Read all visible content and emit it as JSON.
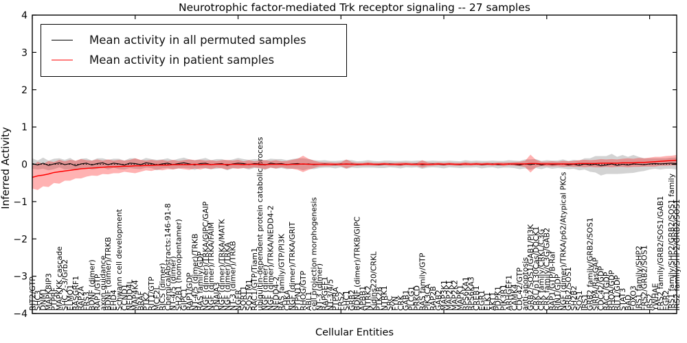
{
  "title": "Neurotrophic factor-mediated Trk receptor signaling -- 27 samples",
  "legend": {
    "entries": [
      {
        "label": "Mean activity in all permuted samples",
        "color": "#000000"
      },
      {
        "label": "Mean activity in patient samples",
        "color": "#ff0000"
      }
    ]
  },
  "axes": {
    "ylabel": "Inferred Activity",
    "xlabel": "Cellular Entities"
  },
  "chart_data": {
    "type": "line",
    "title": "Neurotrophic factor-mediated Trk receptor signaling -- 27 samples",
    "xlabel": "Cellular Entities",
    "ylabel": "Inferred Activity",
    "ylim": [
      -4,
      4
    ],
    "yticks": [
      -4,
      -3,
      -2,
      -1,
      0,
      1,
      2,
      3,
      4
    ],
    "grid": false,
    "zero_line_dotted": true,
    "legend_position": "upper-left",
    "categories": [
      "RIT2/GTP",
      "SHC3",
      "DNM1",
      "MAPK8IP3",
      "PTPRF",
      "MAPKKK cascade",
      "SHC 2-3/Grb2",
      "ELMO1",
      "RASGRF1",
      "RAP2A",
      "FRS3",
      "BDNF (dimer)",
      "RAP1/GTP",
      "axon guidance",
      "BDNF (dimer)/TRKB",
      "EHD4",
      "Schwann cell development",
      "CCND1",
      "NEDD4L",
      "MAP4K4",
      "BRAF",
      "PTK2",
      "RIT1/GTP",
      "MCF2L",
      "RICS (dimer)",
      "ChemicalAbstracts:146-91-8",
      "NT-4/5 (dimer)",
      "SH2B1 (homopentamer)",
      "GIPC1",
      "RAP1/GDP",
      "NT-4/5 (dimer)/TRKB",
      "RAS family/GDP",
      "NGF (dimer)/TRKA/GIPC/GAIP",
      "NGF (dimer)/TRKA/FAIM",
      "DNAJA3",
      "NGF (dimer)/TRKA/MATK",
      "NGF (dimer)/TRKA",
      "NT-3 (dimer)/TRKB",
      "NGFR",
      "SORT1",
      "SQSTM1",
      "RAC1/GTP/Tiam1",
      "ubiquitin-dependent protein catabolic process",
      "NGF (dimer)",
      "NGF (dimer)/TRKA/NEDD4-2",
      "NEDD4-2",
      "RAS family/GTP/PI3K",
      "CHKA",
      "NGF (dimer)/TRKA/GRIT",
      "PTPN11",
      "RHOG/GTP",
      "ABL1",
      "cell projection morphogenesis",
      "NT-3 (dimer)",
      "RAPGEF1",
      "NT-3/4/5",
      "PTPRA",
      "FRS2",
      "SHC1",
      "GRB2",
      "BDNF (dimer)/TRKB/GIPC",
      "APBB1",
      "NTRK2",
      "Kidins220/CRKL",
      "PTK2B",
      "NTRK1",
      "SRC",
      "FYN",
      "CRK",
      "GAB1",
      "PLCG1",
      "PRKCD",
      "RAS family/GTP",
      "PIK3CA",
      "RAP2B",
      "GAB2",
      "MAP3K1",
      "MAP2K1",
      "MAP2K2",
      "MAPK1",
      "RPS6KA1",
      "RPS6KA3",
      "CREB1",
      "EGR1",
      "ELK1",
      "AKT1",
      "PDPK1",
      "PIK3R1",
      "ARHGEF1",
      "CAMK4",
      "CDC42/GTP",
      "anti-apoptosis",
      "GRB2/SOS1/GAB1/PI3K",
      "CRKL/p130Cas/DOCK1",
      "CRK family/CRKL/C3G",
      "CRK family/C3G/GAB2",
      "RAP1/GTP/B-Raf",
      "RIN1/GDP",
      "NGF (dimer)/TRKA/p62/Atypical PKCs",
      "GRB2/SOS1",
      "SH2B2",
      "SOS1",
      "IRS1",
      "GRB2 family/GRB2/SOS1",
      "SIRPA/RasGAP",
      "CDC42/GDP",
      "RAC1/GDP",
      "RHOA/GDP",
      "RIT1/GDP",
      "STAT3",
      "BAD",
      "FOXO3",
      "IRS1 family/SHP2",
      "FRS2/GRB2/SOS1",
      "IRS2",
      "YWHAE",
      "FRS2 family/GRB2/SOS1/GAB1",
      "EGR2",
      "IRS1 family/SHP2/GRB2/SOS1 family",
      "IRS2 family/SHP2/GRB2/SOS1"
    ],
    "series": [
      {
        "name": "Mean activity in all permuted samples",
        "color": "#000000",
        "band_color": "rgba(128,128,128,0.35)",
        "values": [
          0.02,
          -0.02,
          0.03,
          -0.03,
          0.01,
          0.04,
          -0.01,
          0.02,
          -0.04,
          0.01,
          0.03,
          -0.02,
          0.02,
          0.04,
          -0.01,
          0.03,
          0.01,
          -0.02,
          0.03,
          0.02,
          -0.01,
          0.04,
          0.02,
          -0.02,
          0.01,
          0.03,
          -0.01,
          0.02,
          0.04,
          0.01,
          -0.02,
          0.02,
          0.03,
          -0.01,
          0.01,
          0.02,
          -0.03,
          0.01,
          0.03,
          0.02,
          -0.01,
          0.02,
          0.01,
          -0.02,
          0.03,
          0.01,
          0.02,
          -0.01,
          0.01,
          0.02,
          0.0,
          0.01,
          -0.01,
          0.0,
          0.01,
          0.0,
          -0.01,
          0.01,
          0.0,
          0.01,
          -0.01,
          0.0,
          0.01,
          0.0,
          -0.01,
          0.0,
          0.01,
          0.0,
          -0.01,
          0.01,
          0.0,
          0.01,
          -0.01,
          0.0,
          0.01,
          0.0,
          -0.01,
          0.01,
          0.0,
          -0.01,
          0.01,
          0.0,
          0.01,
          -0.01,
          0.0,
          0.01,
          -0.01,
          0.0,
          0.01,
          0.0,
          -0.02,
          0.01,
          -0.01,
          0.02,
          -0.02,
          0.01,
          -0.01,
          0.0,
          0.01,
          -0.02,
          0.0,
          -0.03,
          0.01,
          -0.02,
          0.0,
          -0.04,
          -0.02,
          0.01,
          -0.03,
          0.0,
          -0.02,
          0.01,
          0.0,
          -0.01,
          0.01,
          0.02,
          0.01,
          0.02,
          0.03,
          0.02
        ],
        "band_halfwidth": [
          0.14,
          0.12,
          0.15,
          0.13,
          0.14,
          0.12,
          0.13,
          0.15,
          0.12,
          0.14,
          0.13,
          0.12,
          0.14,
          0.12,
          0.13,
          0.12,
          0.14,
          0.12,
          0.13,
          0.14,
          0.12,
          0.13,
          0.12,
          0.14,
          0.12,
          0.13,
          0.12,
          0.13,
          0.14,
          0.12,
          0.13,
          0.12,
          0.14,
          0.12,
          0.13,
          0.12,
          0.13,
          0.12,
          0.14,
          0.12,
          0.13,
          0.12,
          0.12,
          0.13,
          0.12,
          0.13,
          0.12,
          0.12,
          0.13,
          0.14,
          0.16,
          0.13,
          0.12,
          0.1,
          0.1,
          0.09,
          0.1,
          0.09,
          0.12,
          0.1,
          0.09,
          0.09,
          0.1,
          0.09,
          0.09,
          0.1,
          0.09,
          0.09,
          0.1,
          0.09,
          0.09,
          0.09,
          0.11,
          0.09,
          0.09,
          0.09,
          0.1,
          0.09,
          0.09,
          0.09,
          0.1,
          0.09,
          0.09,
          0.1,
          0.09,
          0.09,
          0.1,
          0.09,
          0.1,
          0.1,
          0.11,
          0.12,
          0.14,
          0.12,
          0.11,
          0.1,
          0.11,
          0.1,
          0.12,
          0.11,
          0.12,
          0.13,
          0.15,
          0.18,
          0.22,
          0.26,
          0.24,
          0.27,
          0.23,
          0.25,
          0.22,
          0.24,
          0.2,
          0.17,
          0.15,
          0.14,
          0.15,
          0.14,
          0.15,
          0.16
        ]
      },
      {
        "name": "Mean activity in patient samples",
        "color": "#ff0000",
        "band_color": "rgba(255,0,0,0.30)",
        "values": [
          -0.35,
          -0.31,
          -0.29,
          -0.26,
          -0.22,
          -0.2,
          -0.18,
          -0.16,
          -0.14,
          -0.12,
          -0.11,
          -0.1,
          -0.09,
          -0.08,
          -0.07,
          -0.07,
          -0.06,
          -0.05,
          -0.05,
          -0.04,
          -0.04,
          -0.03,
          -0.03,
          -0.02,
          -0.02,
          -0.02,
          -0.01,
          -0.01,
          -0.01,
          -0.01,
          0.0,
          -0.01,
          0.0,
          -0.01,
          0.0,
          0.0,
          -0.01,
          0.0,
          0.0,
          -0.01,
          0.0,
          0.0,
          0.0,
          -0.01,
          0.0,
          0.0,
          0.0,
          -0.01,
          0.0,
          0.0,
          0.01,
          0.0,
          0.0,
          0.0,
          0.0,
          0.0,
          0.0,
          0.0,
          0.01,
          0.0,
          0.0,
          0.0,
          0.01,
          0.0,
          0.0,
          0.01,
          0.0,
          0.0,
          0.0,
          0.01,
          0.0,
          0.0,
          0.01,
          0.0,
          0.0,
          0.01,
          0.0,
          0.01,
          0.0,
          0.0,
          0.01,
          0.0,
          0.01,
          0.0,
          0.01,
          0.0,
          0.01,
          0.0,
          0.01,
          0.01,
          0.01,
          0.01,
          0.02,
          0.02,
          0.01,
          0.01,
          0.01,
          0.01,
          0.01,
          0.01,
          0.01,
          0.02,
          0.02,
          0.02,
          0.02,
          0.03,
          0.03,
          0.03,
          0.03,
          0.04,
          0.04,
          0.04,
          0.05,
          0.05,
          0.06,
          0.07,
          0.08,
          0.09,
          0.1,
          0.11
        ],
        "band_halfwidth": [
          0.3,
          0.38,
          0.3,
          0.35,
          0.28,
          0.32,
          0.26,
          0.28,
          0.24,
          0.26,
          0.22,
          0.2,
          0.22,
          0.18,
          0.2,
          0.17,
          0.18,
          0.15,
          0.17,
          0.2,
          0.16,
          0.13,
          0.15,
          0.12,
          0.14,
          0.11,
          0.13,
          0.1,
          0.12,
          0.14,
          0.11,
          0.13,
          0.1,
          0.12,
          0.09,
          0.11,
          0.13,
          0.1,
          0.12,
          0.09,
          0.11,
          0.08,
          0.1,
          0.12,
          0.09,
          0.11,
          0.08,
          0.1,
          0.12,
          0.15,
          0.22,
          0.15,
          0.1,
          0.06,
          0.05,
          0.05,
          0.04,
          0.05,
          0.12,
          0.06,
          0.04,
          0.04,
          0.05,
          0.04,
          0.04,
          0.04,
          0.04,
          0.04,
          0.05,
          0.04,
          0.04,
          0.04,
          0.1,
          0.05,
          0.04,
          0.04,
          0.04,
          0.04,
          0.04,
          0.04,
          0.05,
          0.04,
          0.04,
          0.04,
          0.04,
          0.04,
          0.04,
          0.05,
          0.04,
          0.05,
          0.06,
          0.08,
          0.24,
          0.1,
          0.06,
          0.06,
          0.07,
          0.06,
          0.08,
          0.07,
          0.08,
          0.09,
          0.1,
          0.09,
          0.1,
          0.11,
          0.1,
          0.11,
          0.1,
          0.11,
          0.12,
          0.11,
          0.12,
          0.11,
          0.12,
          0.13,
          0.12,
          0.13,
          0.13,
          0.14
        ]
      }
    ]
  }
}
